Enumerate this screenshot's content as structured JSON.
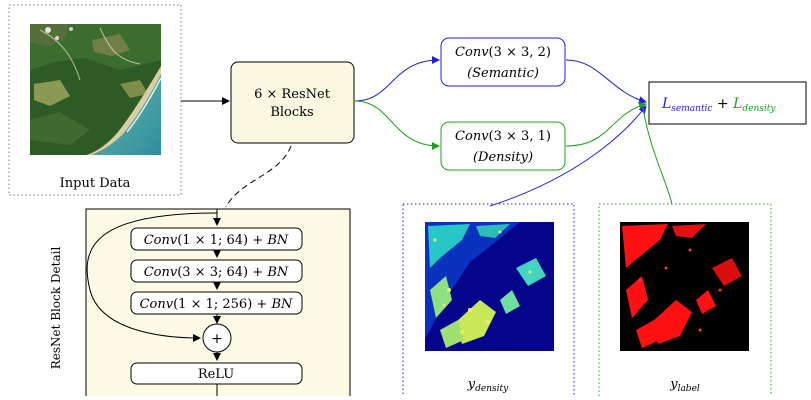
{
  "input": {
    "label": "Input Data",
    "image_desc": "satellite tile: coastline, forest, turquoise sea"
  },
  "resnet": {
    "line1": "6 × ResNet",
    "line2": "Blocks"
  },
  "semantic": {
    "op": "Conv",
    "args": "(3 × 3, 2)",
    "sub": "(Semantic)"
  },
  "density": {
    "op": "Conv",
    "args": "(3 × 3, 1)",
    "sub": "(Density)"
  },
  "loss": {
    "semantic_main": "L",
    "semantic_sub": "semantic",
    "plus": " + ",
    "density_main": "L",
    "density_sub": "density"
  },
  "detail": {
    "side_label": "ResNet Block Detail",
    "steps": [
      {
        "op": "Conv",
        "args": "(1 × 1; 64)",
        "tail": " + ",
        "bn": "BN"
      },
      {
        "op": "Conv",
        "args": "(3 × 3; 64)",
        "tail": " + ",
        "bn": "BN"
      },
      {
        "op": "Conv",
        "args": "(1 × 1; 256)",
        "tail": " + ",
        "bn": "BN"
      }
    ],
    "add_symbol": "+",
    "relu": "ReLU"
  },
  "targets": {
    "density": {
      "main": "y",
      "sub": "density"
    },
    "label": {
      "main": "y",
      "sub": "label"
    }
  },
  "colors": {
    "semantic": "#1f1fe0",
    "density": "#1aa01a",
    "detail_bg": "#fdfbe6",
    "resnet_bg": "#fbf8e1",
    "density_map_bg": "#05058c",
    "label_map_fg": "#ff1111"
  }
}
